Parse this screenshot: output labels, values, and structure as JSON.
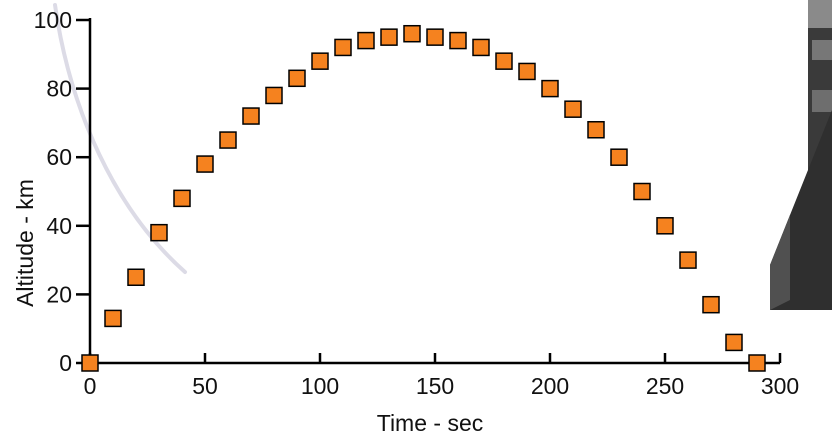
{
  "chart_data": {
    "type": "scatter",
    "title": "",
    "xlabel": "Time - sec",
    "ylabel": "Altitude - km",
    "xlim": [
      0,
      300
    ],
    "ylim": [
      0,
      100
    ],
    "xticks": [
      0,
      50,
      100,
      150,
      200,
      250,
      300
    ],
    "yticks": [
      0,
      20,
      40,
      60,
      80,
      100
    ],
    "grid": false,
    "marker": "square",
    "marker_color": "#F5821F",
    "marker_edge_color": "#000000",
    "series": [
      {
        "x": [
          0,
          10,
          20,
          30,
          40,
          50,
          60,
          70,
          80,
          90,
          100,
          110,
          120,
          130,
          140,
          150,
          160,
          170,
          180,
          190,
          200,
          210,
          220,
          230,
          240,
          250,
          260,
          270,
          280,
          290
        ],
        "y": [
          0,
          13,
          25,
          38,
          48,
          58,
          65,
          72,
          78,
          83,
          88,
          92,
          94,
          95,
          96,
          95,
          94,
          92,
          88,
          85,
          80,
          74,
          68,
          60,
          50,
          40,
          30,
          17,
          6,
          0
        ]
      }
    ]
  }
}
